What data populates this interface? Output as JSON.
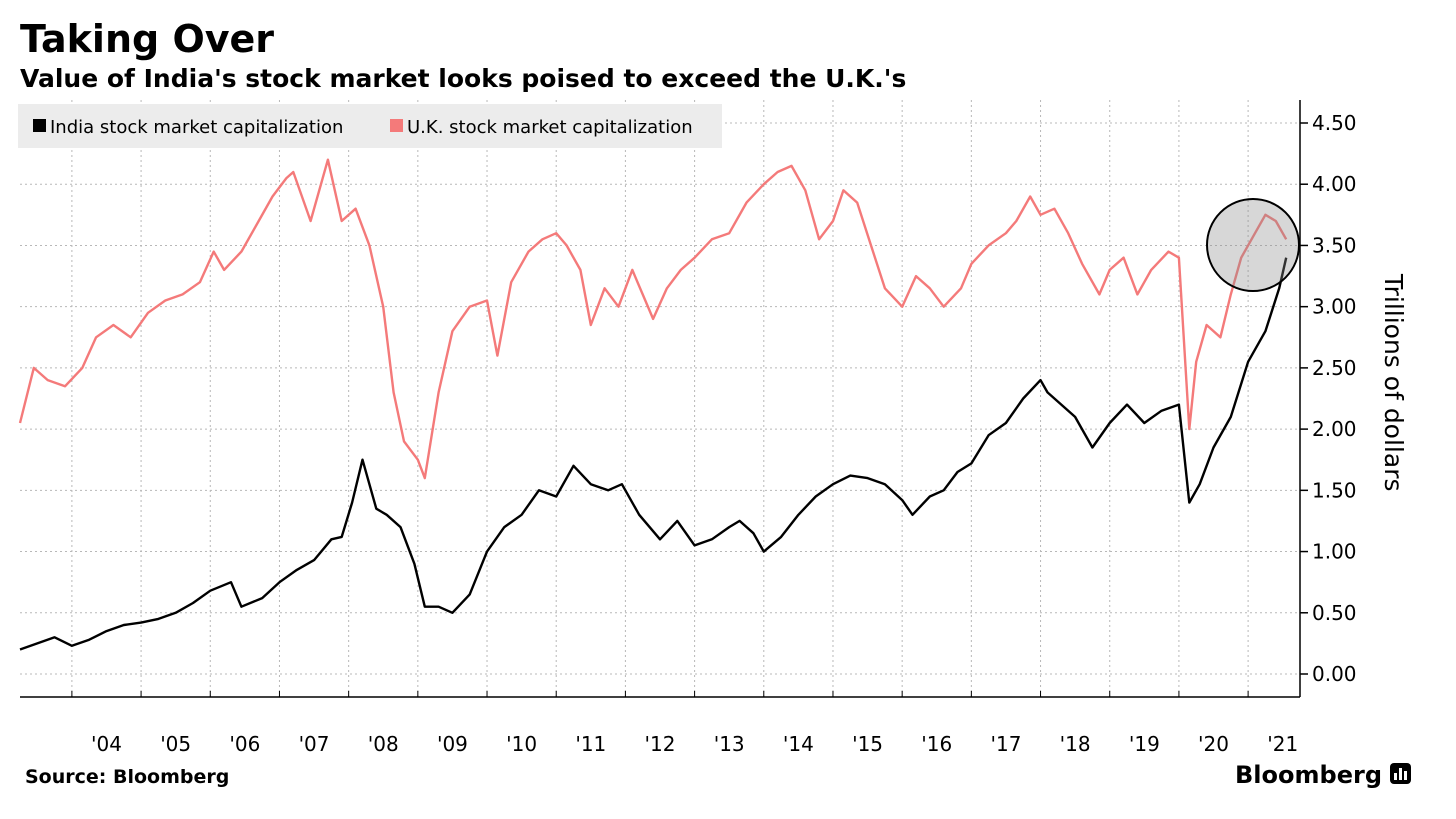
{
  "header": {
    "title": "Taking Over",
    "subtitle": "Value of India's stock market looks poised to exceed the U.K.'s"
  },
  "footer": {
    "source": "Source: Bloomberg",
    "brand": "Bloomberg"
  },
  "colors": {
    "india": "#000000",
    "uk": "#f47a7a",
    "grid": "#b8b8b8",
    "legend_bg": "#ececec",
    "highlight": "#8c8c8c"
  },
  "chart_data": {
    "type": "line",
    "ylabel": "Trillions of dollars",
    "ylim": [
      0,
      4.6
    ],
    "xlim": [
      2003.25,
      2021.75
    ],
    "yticks": [
      0.0,
      0.5,
      1.0,
      1.5,
      2.0,
      2.5,
      3.0,
      3.5,
      4.0,
      4.5
    ],
    "ytick_labels": [
      "0.00",
      "0.50",
      "1.00",
      "1.50",
      "2.00",
      "2.50",
      "3.00",
      "3.50",
      "4.00",
      "4.50"
    ],
    "xtick_positions": [
      2004,
      2005,
      2006,
      2007,
      2008,
      2009,
      2010,
      2011,
      2012,
      2013,
      2014,
      2015,
      2016,
      2017,
      2018,
      2019,
      2020,
      2021
    ],
    "xtick_labels": [
      "'04",
      "'05",
      "'06",
      "'07",
      "'08",
      "'09",
      "'10",
      "'11",
      "'12",
      "'13",
      "'14",
      "'15",
      "'16",
      "'17",
      "'18",
      "'19",
      "'20",
      "'21"
    ],
    "grid": "horizontal dotted",
    "legend": "top-left",
    "annotation": "circle highlighting mid-2021 convergence",
    "series": [
      {
        "name": "India stock market capitalization",
        "x": [
          2003.25,
          2003.5,
          2003.75,
          2004.0,
          2004.25,
          2004.5,
          2004.75,
          2005.0,
          2005.25,
          2005.5,
          2005.75,
          2006.0,
          2006.3,
          2006.45,
          2006.75,
          2007.0,
          2007.25,
          2007.5,
          2007.75,
          2007.9,
          2008.05,
          2008.2,
          2008.4,
          2008.55,
          2008.75,
          2008.95,
          2009.1,
          2009.3,
          2009.5,
          2009.75,
          2010.0,
          2010.25,
          2010.5,
          2010.75,
          2011.0,
          2011.25,
          2011.5,
          2011.75,
          2011.95,
          2012.2,
          2012.5,
          2012.75,
          2013.0,
          2013.25,
          2013.5,
          2013.65,
          2013.85,
          2014.0,
          2014.25,
          2014.5,
          2014.75,
          2015.0,
          2015.25,
          2015.5,
          2015.75,
          2016.0,
          2016.15,
          2016.4,
          2016.6,
          2016.8,
          2017.0,
          2017.25,
          2017.5,
          2017.75,
          2018.0,
          2018.1,
          2018.3,
          2018.5,
          2018.75,
          2019.0,
          2019.25,
          2019.5,
          2019.75,
          2020.0,
          2020.15,
          2020.3,
          2020.5,
          2020.75,
          2021.0,
          2021.25,
          2021.45,
          2021.55
        ],
        "y": [
          0.2,
          0.25,
          0.3,
          0.23,
          0.28,
          0.35,
          0.4,
          0.42,
          0.45,
          0.5,
          0.58,
          0.68,
          0.75,
          0.55,
          0.62,
          0.75,
          0.85,
          0.93,
          1.1,
          1.12,
          1.4,
          1.75,
          1.35,
          1.3,
          1.2,
          0.9,
          0.55,
          0.55,
          0.5,
          0.65,
          1.0,
          1.2,
          1.3,
          1.5,
          1.45,
          1.7,
          1.55,
          1.5,
          1.55,
          1.3,
          1.1,
          1.25,
          1.05,
          1.1,
          1.2,
          1.25,
          1.15,
          1.0,
          1.12,
          1.3,
          1.45,
          1.55,
          1.62,
          1.6,
          1.55,
          1.42,
          1.3,
          1.45,
          1.5,
          1.65,
          1.72,
          1.95,
          2.05,
          2.25,
          2.4,
          2.3,
          2.2,
          2.1,
          1.85,
          2.05,
          2.2,
          2.05,
          2.15,
          2.2,
          1.4,
          1.55,
          1.85,
          2.1,
          2.55,
          2.8,
          3.15,
          3.4
        ]
      },
      {
        "name": "U.K. stock market capitalization",
        "x": [
          2003.25,
          2003.45,
          2003.65,
          2003.9,
          2004.15,
          2004.35,
          2004.6,
          2004.85,
          2005.1,
          2005.35,
          2005.6,
          2005.85,
          2006.05,
          2006.2,
          2006.45,
          2006.7,
          2006.9,
          2007.1,
          2007.2,
          2007.45,
          2007.7,
          2007.9,
          2008.1,
          2008.3,
          2008.5,
          2008.65,
          2008.8,
          2009.0,
          2009.1,
          2009.3,
          2009.5,
          2009.75,
          2010.0,
          2010.15,
          2010.35,
          2010.6,
          2010.8,
          2011.0,
          2011.15,
          2011.35,
          2011.5,
          2011.7,
          2011.9,
          2012.1,
          2012.25,
          2012.4,
          2012.6,
          2012.8,
          2013.0,
          2013.25,
          2013.5,
          2013.75,
          2014.0,
          2014.2,
          2014.4,
          2014.6,
          2014.8,
          2015.0,
          2015.15,
          2015.35,
          2015.55,
          2015.75,
          2016.0,
          2016.2,
          2016.4,
          2016.6,
          2016.85,
          2017.0,
          2017.25,
          2017.5,
          2017.65,
          2017.85,
          2018.0,
          2018.2,
          2018.4,
          2018.6,
          2018.85,
          2019.0,
          2019.2,
          2019.4,
          2019.6,
          2019.85,
          2020.0,
          2020.15,
          2020.25,
          2020.4,
          2020.6,
          2020.75,
          2020.9,
          2021.0,
          2021.1,
          2021.25,
          2021.4,
          2021.55
        ],
        "y": [
          2.05,
          2.5,
          2.4,
          2.35,
          2.5,
          2.75,
          2.85,
          2.75,
          2.95,
          3.05,
          3.1,
          3.2,
          3.45,
          3.3,
          3.45,
          3.7,
          3.9,
          4.05,
          4.1,
          3.7,
          4.2,
          3.7,
          3.8,
          3.5,
          3.0,
          2.3,
          1.9,
          1.75,
          1.6,
          2.3,
          2.8,
          3.0,
          3.05,
          2.6,
          3.2,
          3.45,
          3.55,
          3.6,
          3.5,
          3.3,
          2.85,
          3.15,
          3.0,
          3.3,
          3.1,
          2.9,
          3.15,
          3.3,
          3.4,
          3.55,
          3.6,
          3.85,
          4.0,
          4.1,
          4.15,
          3.95,
          3.55,
          3.7,
          3.95,
          3.85,
          3.5,
          3.15,
          3.0,
          3.25,
          3.15,
          3.0,
          3.15,
          3.35,
          3.5,
          3.6,
          3.7,
          3.9,
          3.75,
          3.8,
          3.6,
          3.35,
          3.1,
          3.3,
          3.4,
          3.1,
          3.3,
          3.45,
          3.4,
          2.0,
          2.55,
          2.85,
          2.75,
          3.1,
          3.4,
          3.5,
          3.6,
          3.75,
          3.7,
          3.55
        ]
      }
    ]
  }
}
